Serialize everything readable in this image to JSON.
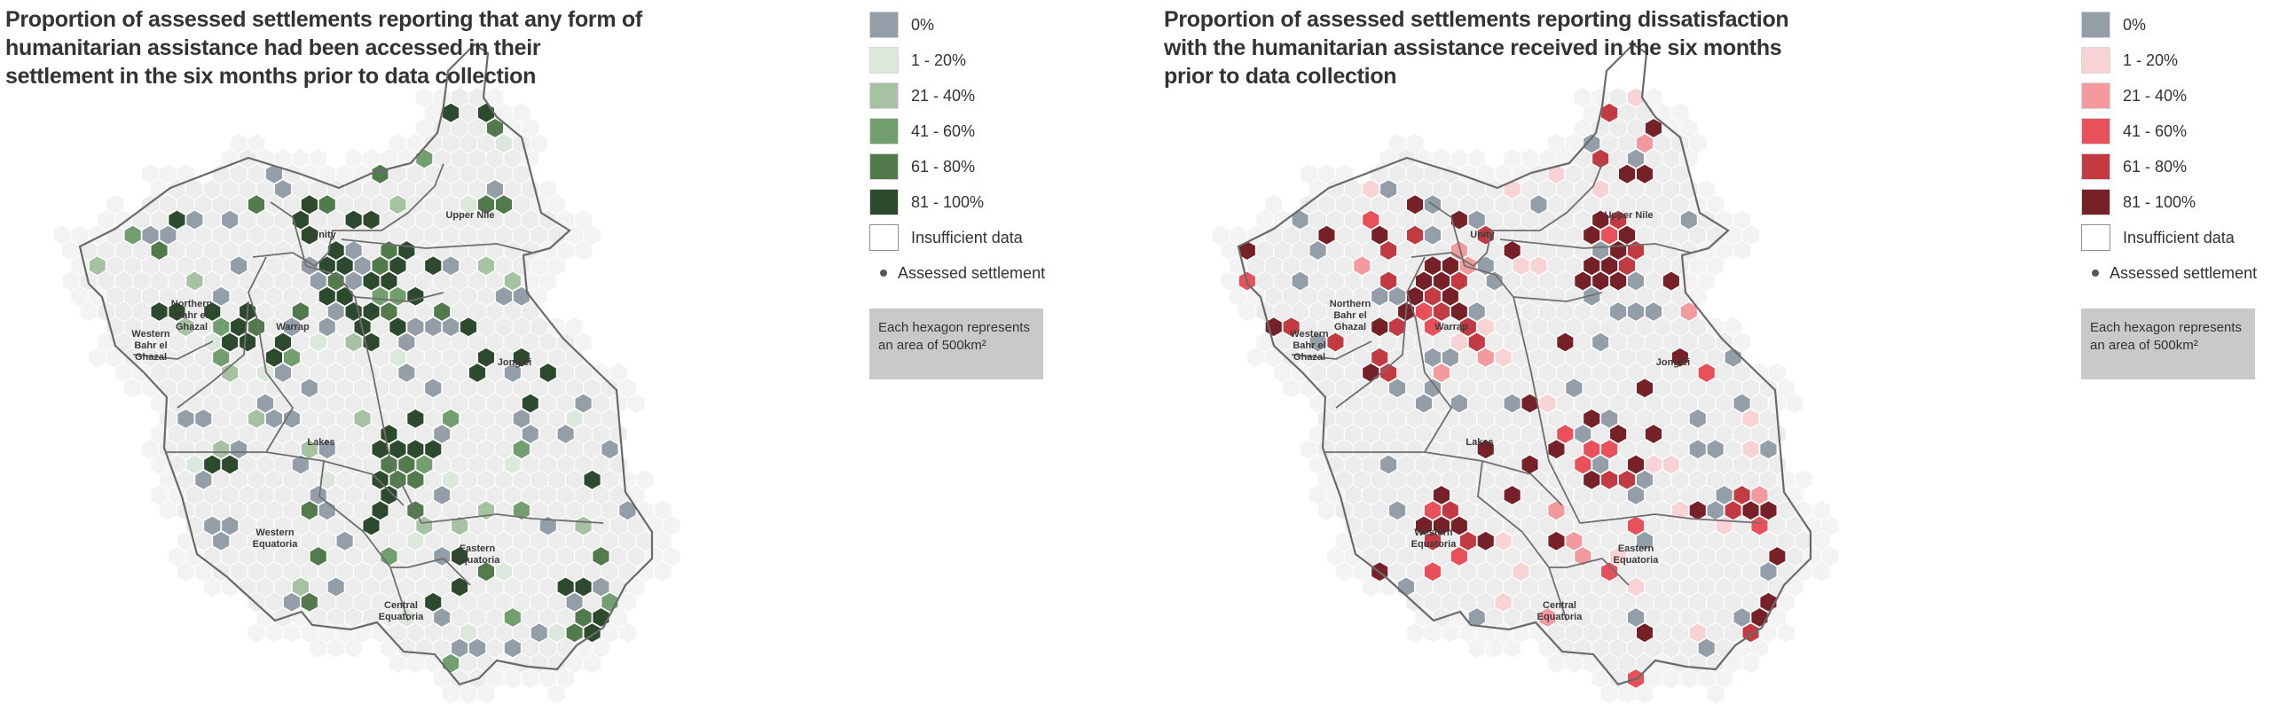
{
  "maps": [
    {
      "title": "Proportion of assessed settlements reporting that any form of humanitarian assistance had been accessed in their settlement in the six months prior to data collection",
      "palette": "green",
      "legend": [
        {
          "label": "0%",
          "color": "#949ea8"
        },
        {
          "label": "1 - 20%",
          "color": "#dde8dc"
        },
        {
          "label": "21 - 40%",
          "color": "#a6c2a3"
        },
        {
          "label": "41 - 60%",
          "color": "#739e6f"
        },
        {
          "label": "61 - 80%",
          "color": "#527a4d"
        },
        {
          "label": "81 - 100%",
          "color": "#2e4a2e"
        }
      ],
      "legend_insufficient": "Insufficient data",
      "legend_settlement": "Assessed settlement",
      "note": "Each hexagon represents an area of 500km²"
    },
    {
      "title": "Proportion of assessed settlements reporting dissatisfaction with the humanitarian assistance received in the six months prior to data collection",
      "palette": "red",
      "legend": [
        {
          "label": "0%",
          "color": "#949ea8"
        },
        {
          "label": "1 - 20%",
          "color": "#f8d3d5"
        },
        {
          "label": "21 - 40%",
          "color": "#f29a9e"
        },
        {
          "label": "41 - 60%",
          "color": "#e8515a"
        },
        {
          "label": "61 - 80%",
          "color": "#c23b42"
        },
        {
          "label": "81 - 100%",
          "color": "#762028"
        }
      ],
      "legend_insufficient": "Insufficient data",
      "legend_settlement": "Assessed settlement",
      "note": "Each hexagon represents an area of 500km²"
    }
  ],
  "region_labels": {
    "upper_nile": "Upper Nile",
    "unity": "Unity",
    "northern_bahr_el_ghazal": [
      "Northern",
      "Bahr el",
      "Ghazal"
    ],
    "warrap": "Warrap",
    "western_bahr_el_ghazal": [
      "Western",
      "Bahr el",
      "Ghazal"
    ],
    "jonglei": "Jonglei",
    "lakes": "Lakes",
    "western_equatoria": [
      "Western",
      "Equatoria"
    ],
    "central_equatoria": [
      "Central",
      "Equatoria"
    ],
    "eastern_equatoria": [
      "Eastern",
      "Equatoria"
    ]
  }
}
